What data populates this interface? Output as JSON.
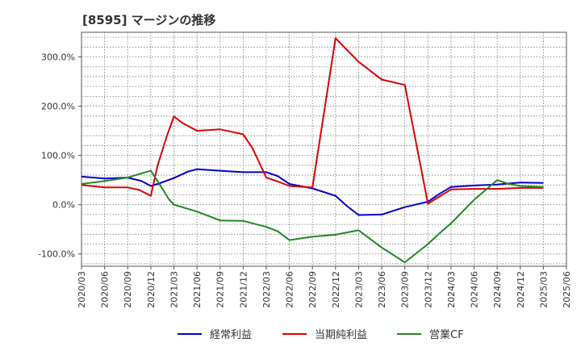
{
  "chart_data": {
    "type": "line",
    "title": "[8595]  マージンの推移",
    "xlabel": "",
    "ylabel": "",
    "ylim": [
      -125,
      350
    ],
    "yticks": [
      -100,
      0,
      100,
      200,
      300
    ],
    "ytick_labels": [
      "-100.0%",
      "0.0%",
      "100.0%",
      "200.0%",
      "300.0%"
    ],
    "x": [
      "2020/03",
      "2020/06",
      "2020/09",
      "2020/12",
      "2021/03",
      "2021/06",
      "2021/09",
      "2021/12",
      "2022/03",
      "2022/06",
      "2022/09",
      "2022/12",
      "2023/03",
      "2023/06",
      "2023/09",
      "2023/12",
      "2024/03",
      "2024/06",
      "2024/09",
      "2024/12",
      "2025/03",
      "2025/06"
    ],
    "grid": true,
    "legend_position": "bottom",
    "series": [
      {
        "name": "経常利益",
        "color": "#0000cc",
        "points": [
          [
            0,
            57
          ],
          [
            1,
            53
          ],
          [
            2,
            55
          ],
          [
            2.6,
            48
          ],
          [
            3,
            38
          ],
          [
            3.3,
            42
          ],
          [
            4,
            54
          ],
          [
            4.6,
            67
          ],
          [
            5,
            72
          ],
          [
            6,
            69
          ],
          [
            7,
            66
          ],
          [
            8,
            66
          ],
          [
            8.5,
            58
          ],
          [
            9,
            42
          ],
          [
            10,
            33
          ],
          [
            11,
            18
          ],
          [
            11.5,
            -3
          ],
          [
            12,
            -21
          ],
          [
            13,
            -20
          ],
          [
            14,
            -5
          ],
          [
            15,
            6
          ],
          [
            15.5,
            22
          ],
          [
            16,
            36
          ],
          [
            17,
            39
          ],
          [
            18,
            41
          ],
          [
            19,
            45
          ],
          [
            20,
            44
          ]
        ]
      },
      {
        "name": "当期純利益",
        "color": "#dd0000",
        "points": [
          [
            0,
            40
          ],
          [
            1,
            35
          ],
          [
            2,
            35
          ],
          [
            2.5,
            30
          ],
          [
            3,
            18
          ],
          [
            3.3,
            80
          ],
          [
            3.7,
            140
          ],
          [
            4,
            179
          ],
          [
            4.4,
            165
          ],
          [
            5,
            150
          ],
          [
            6,
            153
          ],
          [
            7,
            143
          ],
          [
            7.4,
            115
          ],
          [
            8,
            55
          ],
          [
            8.5,
            47
          ],
          [
            9,
            38
          ],
          [
            10,
            35
          ],
          [
            11,
            338
          ],
          [
            12,
            290
          ],
          [
            13,
            254
          ],
          [
            14,
            243
          ],
          [
            15,
            2
          ],
          [
            16,
            31
          ],
          [
            17,
            32
          ],
          [
            18,
            32
          ],
          [
            19,
            34
          ],
          [
            20,
            34
          ]
        ]
      },
      {
        "name": "営業CF",
        "color": "#228822",
        "points": [
          [
            0,
            42
          ],
          [
            1,
            48
          ],
          [
            2,
            55
          ],
          [
            2.5,
            62
          ],
          [
            3,
            69
          ],
          [
            3.4,
            40
          ],
          [
            3.8,
            10
          ],
          [
            4,
            0
          ],
          [
            5,
            -14
          ],
          [
            6,
            -32
          ],
          [
            7,
            -33
          ],
          [
            8,
            -45
          ],
          [
            8.5,
            -54
          ],
          [
            9,
            -72
          ],
          [
            10,
            -65
          ],
          [
            11,
            -61
          ],
          [
            12,
            -52
          ],
          [
            13,
            -87
          ],
          [
            14,
            -117
          ],
          [
            15,
            -80
          ],
          [
            15.5,
            -58
          ],
          [
            16,
            -38
          ],
          [
            17,
            10
          ],
          [
            18,
            50
          ],
          [
            18.5,
            42
          ],
          [
            19,
            38
          ],
          [
            20,
            36
          ]
        ]
      }
    ]
  }
}
